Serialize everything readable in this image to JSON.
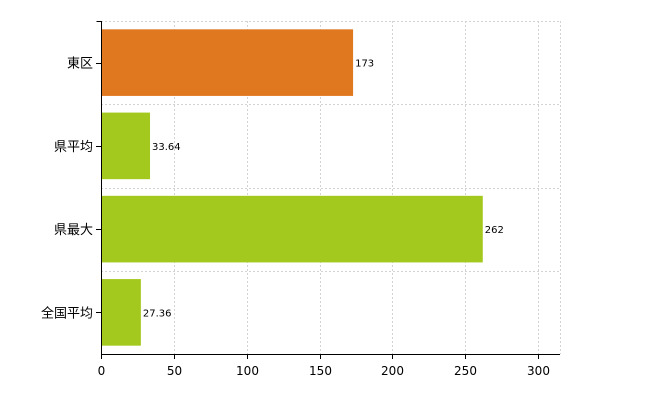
{
  "chart_data": {
    "type": "bar",
    "orientation": "horizontal",
    "categories": [
      "東区",
      "県平均",
      "県最大",
      "全国平均"
    ],
    "values": [
      173,
      33.64,
      262,
      27.36
    ],
    "value_labels": [
      "173",
      "33.64",
      "262",
      "27.36"
    ],
    "bar_colors": [
      "#e07820",
      "#a3c81e",
      "#a3c81e",
      "#a3c81e"
    ],
    "xlim": [
      0,
      315
    ],
    "xticks": [
      0,
      50,
      100,
      150,
      200,
      250,
      300
    ],
    "xtick_labels": [
      "0",
      "50",
      "100",
      "150",
      "200",
      "250",
      "300"
    ],
    "grid": true,
    "legend": "none"
  }
}
